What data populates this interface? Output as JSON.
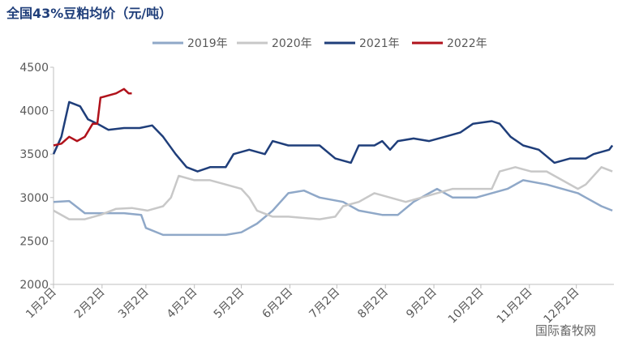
{
  "chart_data": {
    "type": "line",
    "title": "全国43%豆粕均价（元/吨）",
    "watermark": "国际畜牧网",
    "xlim": [
      0,
      358
    ],
    "xticks": [
      {
        "value": 0,
        "label": "1月2日"
      },
      {
        "value": 31,
        "label": "2月2日"
      },
      {
        "value": 59,
        "label": "3月2日"
      },
      {
        "value": 90,
        "label": "4月2日"
      },
      {
        "value": 120,
        "label": "5月2日"
      },
      {
        "value": 151,
        "label": "6月2日"
      },
      {
        "value": 181,
        "label": "7月2日"
      },
      {
        "value": 212,
        "label": "8月2日"
      },
      {
        "value": 243,
        "label": "9月2日"
      },
      {
        "value": 273,
        "label": "10月2日"
      },
      {
        "value": 304,
        "label": "11月2日"
      },
      {
        "value": 334,
        "label": "12月2日"
      }
    ],
    "ylim": [
      2000,
      4500
    ],
    "yticks": [
      2000,
      2500,
      3000,
      3500,
      4000,
      4500
    ],
    "grid": false,
    "legend": "top",
    "series": [
      {
        "name": "2019年",
        "color": "#8fa8c8",
        "x": [
          0,
          10,
          20,
          31,
          45,
          56,
          59,
          70,
          90,
          110,
          120,
          130,
          140,
          150,
          160,
          170,
          185,
          195,
          210,
          220,
          230,
          240,
          245,
          255,
          270,
          280,
          290,
          300,
          315,
          325,
          335,
          340,
          350,
          357
        ],
        "values": [
          2950,
          2960,
          2820,
          2820,
          2820,
          2800,
          2650,
          2570,
          2570,
          2570,
          2600,
          2700,
          2850,
          3050,
          3080,
          3000,
          2950,
          2850,
          2800,
          2800,
          2950,
          3050,
          3100,
          3000,
          3000,
          3050,
          3100,
          3200,
          3150,
          3100,
          3050,
          3000,
          2900,
          2850
        ]
      },
      {
        "name": "2020年",
        "color": "#c8c8c8",
        "x": [
          0,
          10,
          20,
          30,
          40,
          50,
          60,
          70,
          75,
          80,
          90,
          100,
          110,
          120,
          125,
          130,
          140,
          150,
          170,
          180,
          185,
          195,
          205,
          215,
          225,
          235,
          245,
          255,
          265,
          280,
          285,
          295,
          305,
          315,
          325,
          335,
          340,
          350,
          357
        ],
        "values": [
          2850,
          2750,
          2750,
          2800,
          2870,
          2880,
          2850,
          2900,
          3000,
          3250,
          3200,
          3200,
          3150,
          3100,
          3000,
          2850,
          2780,
          2780,
          2750,
          2780,
          2900,
          2950,
          3050,
          3000,
          2950,
          3000,
          3050,
          3100,
          3100,
          3100,
          3300,
          3350,
          3300,
          3300,
          3200,
          3100,
          3150,
          3350,
          3300
        ]
      },
      {
        "name": "2021年",
        "color": "#1f3e7a",
        "x": [
          0,
          5,
          10,
          17,
          22,
          28,
          35,
          45,
          55,
          63,
          70,
          78,
          85,
          92,
          100,
          110,
          115,
          125,
          135,
          140,
          150,
          165,
          170,
          180,
          190,
          195,
          205,
          210,
          215,
          220,
          230,
          240,
          250,
          260,
          268,
          280,
          285,
          292,
          300,
          310,
          320,
          330,
          340,
          345,
          355,
          357
        ],
        "values": [
          3500,
          3700,
          4100,
          4050,
          3900,
          3850,
          3780,
          3800,
          3800,
          3830,
          3700,
          3500,
          3350,
          3300,
          3350,
          3350,
          3500,
          3550,
          3500,
          3650,
          3600,
          3600,
          3600,
          3450,
          3400,
          3600,
          3600,
          3650,
          3550,
          3650,
          3680,
          3650,
          3700,
          3750,
          3850,
          3880,
          3850,
          3700,
          3600,
          3550,
          3400,
          3450,
          3450,
          3500,
          3550,
          3600
        ]
      },
      {
        "name": "2022年",
        "color": "#b0121b",
        "x": [
          0,
          5,
          10,
          15,
          20,
          25,
          28,
          30,
          40,
          45,
          48,
          50
        ],
        "values": [
          3600,
          3620,
          3700,
          3650,
          3700,
          3850,
          3850,
          4150,
          4200,
          4250,
          4200,
          4200
        ]
      }
    ]
  }
}
